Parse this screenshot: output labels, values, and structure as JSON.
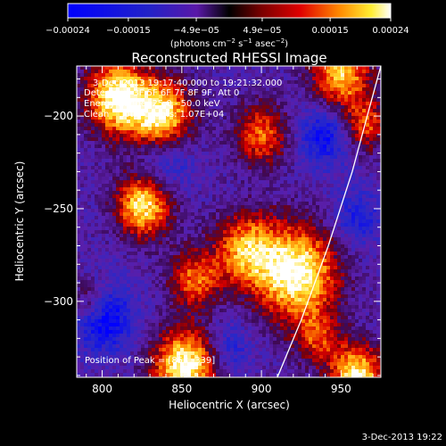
{
  "chart_data": {
    "type": "heatmap",
    "title": "Reconstructed RHESSI Image",
    "xlabel": "Heliocentric X (arcsec)",
    "ylabel": "Heliocentric Y (arcsec)",
    "xlim": [
      784,
      975
    ],
    "ylim": [
      -341,
      -173
    ],
    "x_ticks": [
      800,
      850,
      900,
      950
    ],
    "y_ticks": [
      -300,
      -250,
      -200
    ],
    "x_tick_labels": [
      "800",
      "850",
      "900",
      "950"
    ],
    "y_tick_labels": [
      "−300",
      "−250",
      "−200"
    ],
    "colorbar": {
      "range": [
        -0.00024,
        0.00024
      ],
      "ticks": [
        -0.00024,
        -0.00015,
        -4.9e-05,
        4.9e-05,
        0.00015,
        0.00024
      ],
      "tick_labels": [
        "−0.00024",
        "−0.00015",
        "−4.9e−05",
        "4.9e−05",
        "0.00015",
        "0.00024"
      ],
      "units_text": "(photons cm",
      "units_exp1": "−2",
      "units_s": " s",
      "units_exp2": "−1",
      "units_asec": " asec",
      "units_exp3": "−2",
      "units_close": ")"
    },
    "annotations": [
      "3-Dec-2013 19:17:40.000 to 19:21:32.000",
      "Detectors: 3F 5F 6F 7F 8F 9F, Att 0",
      "Energy Range: 25.0 - 50.0 keV",
      "Clean    Total counts: 1.07E+04"
    ],
    "peak_label": "Position of Peak = [853,-339]",
    "peak_position": [
      853,
      -339
    ],
    "limb_curve": [
      [
        910,
        -341
      ],
      [
        925,
        -310
      ],
      [
        942,
        -270
      ],
      [
        957,
        -230
      ],
      [
        968,
        -195
      ],
      [
        975,
        -173
      ]
    ],
    "hot_spots": [
      {
        "x": 810,
        "y": -190,
        "amp": 1.0,
        "sigma": 14
      },
      {
        "x": 838,
        "y": -200,
        "amp": 0.9,
        "sigma": 13
      },
      {
        "x": 826,
        "y": -248,
        "amp": 0.9,
        "sigma": 12
      },
      {
        "x": 922,
        "y": -285,
        "amp": 1.0,
        "sigma": 18
      },
      {
        "x": 890,
        "y": -272,
        "amp": 0.7,
        "sigma": 14
      },
      {
        "x": 858,
        "y": -288,
        "amp": 0.6,
        "sigma": 11
      },
      {
        "x": 935,
        "y": -320,
        "amp": 0.45,
        "sigma": 10
      },
      {
        "x": 852,
        "y": -335,
        "amp": 1.0,
        "sigma": 14
      },
      {
        "x": 793,
        "y": -300,
        "amp": 0.5,
        "sigma": 9
      },
      {
        "x": 900,
        "y": -210,
        "amp": 0.6,
        "sigma": 12
      },
      {
        "x": 950,
        "y": -178,
        "amp": 0.8,
        "sigma": 13
      },
      {
        "x": 965,
        "y": -205,
        "amp": 0.55,
        "sigma": 10
      },
      {
        "x": 960,
        "y": -340,
        "amp": 0.9,
        "sigma": 12
      }
    ],
    "cold_spots": [
      {
        "x": 800,
        "y": -308,
        "amp": 0.95,
        "sigma": 13
      },
      {
        "x": 940,
        "y": -210,
        "amp": 0.7,
        "sigma": 12
      },
      {
        "x": 840,
        "y": -225,
        "amp": 0.5,
        "sigma": 12
      },
      {
        "x": 960,
        "y": -255,
        "amp": 0.5,
        "sigma": 11
      },
      {
        "x": 880,
        "y": -325,
        "amp": 0.45,
        "sigma": 10
      }
    ]
  },
  "footer": {
    "timestamp": "3-Dec-2013 19:22"
  },
  "colors": {
    "background": "#000000",
    "text": "#ffffff",
    "limb": "#ffffff"
  }
}
